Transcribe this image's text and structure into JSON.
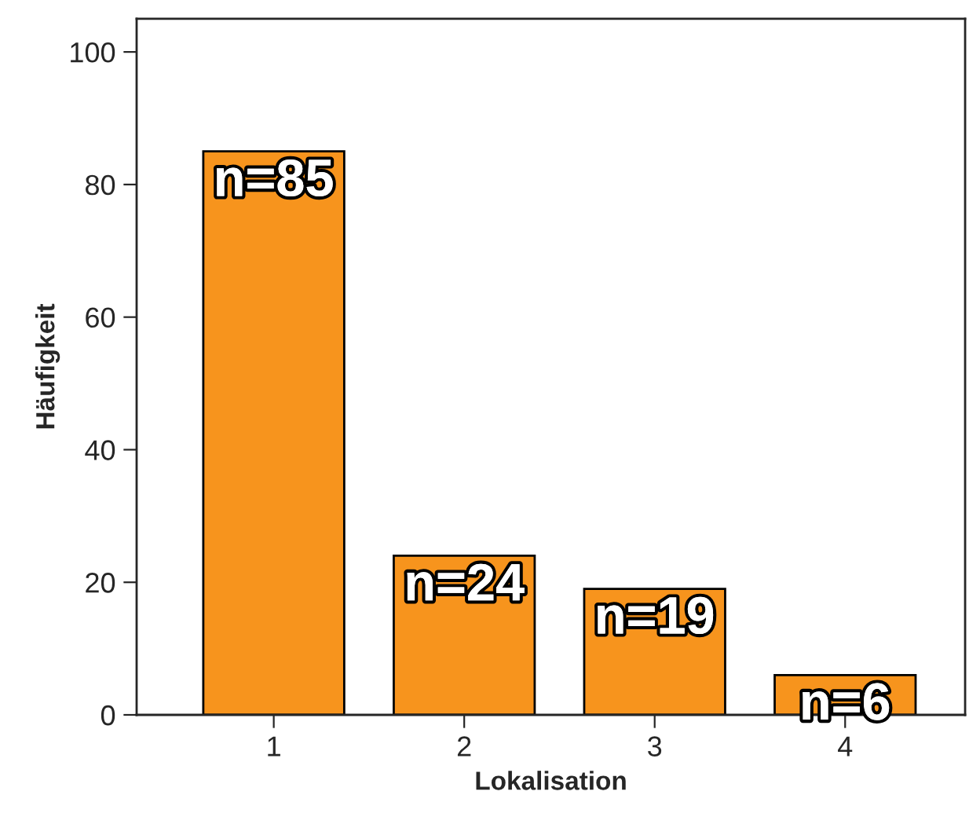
{
  "chart_data": {
    "type": "bar",
    "xlabel": "Lokalisation",
    "ylabel": "Häufigkeit",
    "categories": [
      "1",
      "2",
      "3",
      "4"
    ],
    "values": [
      85,
      24,
      19,
      6
    ],
    "value_labels": [
      "n=85",
      "n=24",
      "n=19",
      "n=6"
    ],
    "color": "#f7941d",
    "ylim": [
      0,
      105
    ],
    "yticks": [
      0,
      20,
      40,
      60,
      80,
      100
    ],
    "grid": false
  }
}
